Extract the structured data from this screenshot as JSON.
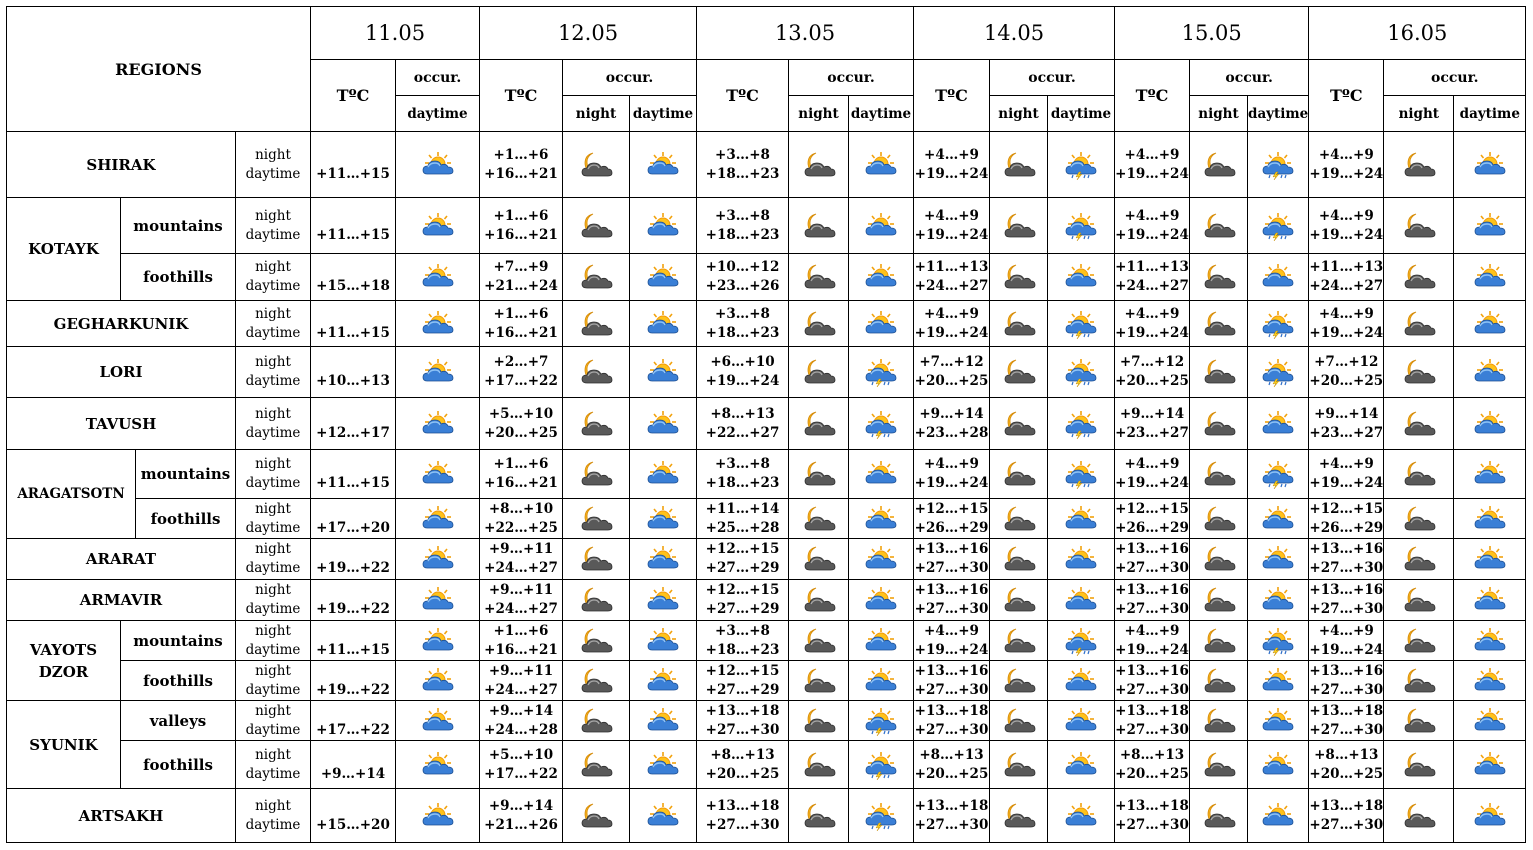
{
  "header": {
    "regions_label": "REGIONS",
    "temp_label": "TºC",
    "occur_label": "occur.",
    "night_label": "night",
    "daytime_label": "daytime",
    "dates": [
      "11.05",
      "12.05",
      "13.05",
      "14.05",
      "15.05",
      "16.05"
    ]
  },
  "row_labels": {
    "night": "night",
    "daytime": "daytime"
  },
  "rows": [
    {
      "region": "SHIRAK",
      "sub": "",
      "day1": {
        "day": "+11…+15",
        "icon": "sun-cloud-icon"
      },
      "days": [
        {
          "night": "+1…+6",
          "day": "+16…+21",
          "icons": [
            "moon-cloud-icon",
            "sun-cloud-icon"
          ]
        },
        {
          "night": "+3…+8",
          "day": "+18…+23",
          "icons": [
            "moon-cloud-icon",
            "sun-cloud-icon"
          ]
        },
        {
          "night": "+4…+9",
          "day": "+19…+24",
          "icons": [
            "moon-cloud-icon",
            "thunderstorm-icon"
          ]
        },
        {
          "night": "+4…+9",
          "day": "+19…+24",
          "icons": [
            "moon-cloud-icon",
            "thunderstorm-icon"
          ]
        },
        {
          "night": "+4…+9",
          "day": "+19…+24",
          "icons": [
            "moon-cloud-icon",
            "sun-cloud-icon"
          ]
        }
      ]
    },
    {
      "region": "KOTAYK",
      "sub": "mountains",
      "day1": {
        "day": "+11…+15",
        "icon": "sun-cloud-icon"
      },
      "days": [
        {
          "night": "+1…+6",
          "day": "+16…+21",
          "icons": [
            "moon-cloud-icon",
            "sun-cloud-icon"
          ]
        },
        {
          "night": "+3…+8",
          "day": "+18…+23",
          "icons": [
            "moon-cloud-icon",
            "sun-cloud-icon"
          ]
        },
        {
          "night": "+4…+9",
          "day": "+19…+24",
          "icons": [
            "moon-cloud-icon",
            "thunderstorm-icon"
          ]
        },
        {
          "night": "+4…+9",
          "day": "+19…+24",
          "icons": [
            "moon-cloud-icon",
            "thunderstorm-icon"
          ]
        },
        {
          "night": "+4…+9",
          "day": "+19…+24",
          "icons": [
            "moon-cloud-icon",
            "sun-cloud-icon"
          ]
        }
      ]
    },
    {
      "region": "KOTAYK",
      "sub": "foothills",
      "day1": {
        "day": "+15…+18",
        "icon": "sun-cloud-icon"
      },
      "days": [
        {
          "night": "+7…+9",
          "day": "+21…+24",
          "icons": [
            "moon-cloud-icon",
            "sun-cloud-icon"
          ]
        },
        {
          "night": "+10…+12",
          "day": "+23…+26",
          "icons": [
            "moon-cloud-icon",
            "sun-cloud-icon"
          ]
        },
        {
          "night": "+11…+13",
          "day": "+24…+27",
          "icons": [
            "moon-cloud-icon",
            "sun-cloud-icon"
          ]
        },
        {
          "night": "+11…+13",
          "day": "+24…+27",
          "icons": [
            "moon-cloud-icon",
            "sun-cloud-icon"
          ]
        },
        {
          "night": "+11…+13",
          "day": "+24…+27",
          "icons": [
            "moon-cloud-icon",
            "sun-cloud-icon"
          ]
        }
      ]
    },
    {
      "region": "GEGHARKUNIK",
      "sub": "",
      "day1": {
        "day": "+11…+15",
        "icon": "sun-cloud-icon"
      },
      "days": [
        {
          "night": "+1…+6",
          "day": "+16…+21",
          "icons": [
            "moon-cloud-icon",
            "sun-cloud-icon"
          ]
        },
        {
          "night": "+3…+8",
          "day": "+18…+23",
          "icons": [
            "moon-cloud-icon",
            "sun-cloud-icon"
          ]
        },
        {
          "night": "+4…+9",
          "day": "+19…+24",
          "icons": [
            "moon-cloud-icon",
            "thunderstorm-icon"
          ]
        },
        {
          "night": "+4…+9",
          "day": "+19…+24",
          "icons": [
            "moon-cloud-icon",
            "thunderstorm-icon"
          ]
        },
        {
          "night": "+4…+9",
          "day": "+19…+24",
          "icons": [
            "moon-cloud-icon",
            "sun-cloud-icon"
          ]
        }
      ]
    },
    {
      "region": "LORI",
      "sub": "",
      "day1": {
        "day": "+10…+13",
        "icon": "sun-cloud-icon"
      },
      "days": [
        {
          "night": "+2…+7",
          "day": "+17…+22",
          "icons": [
            "moon-cloud-icon",
            "sun-cloud-icon"
          ]
        },
        {
          "night": "+6…+10",
          "day": "+19…+24",
          "icons": [
            "moon-cloud-icon",
            "thunderstorm-icon"
          ]
        },
        {
          "night": "+7…+12",
          "day": "+20…+25",
          "icons": [
            "moon-cloud-icon",
            "thunderstorm-icon"
          ]
        },
        {
          "night": "+7…+12",
          "day": "+20…+25",
          "icons": [
            "moon-cloud-icon",
            "thunderstorm-icon"
          ]
        },
        {
          "night": "+7…+12",
          "day": "+20…+25",
          "icons": [
            "moon-cloud-icon",
            "sun-cloud-icon"
          ]
        }
      ]
    },
    {
      "region": "TAVUSH",
      "sub": "",
      "day1": {
        "day": "+12…+17",
        "icon": "sun-cloud-icon"
      },
      "days": [
        {
          "night": "+5…+10",
          "day": "+20…+25",
          "icons": [
            "moon-cloud-icon",
            "sun-cloud-icon"
          ]
        },
        {
          "night": "+8…+13",
          "day": "+22…+27",
          "icons": [
            "moon-cloud-icon",
            "thunderstorm-icon"
          ]
        },
        {
          "night": "+9…+14",
          "day": "+23…+28",
          "icons": [
            "moon-cloud-icon",
            "thunderstorm-icon"
          ]
        },
        {
          "night": "+9…+14",
          "day": "+23…+27",
          "icons": [
            "moon-cloud-icon",
            "sun-cloud-icon"
          ]
        },
        {
          "night": "+9…+14",
          "day": "+23…+27",
          "icons": [
            "moon-cloud-icon",
            "sun-cloud-icon"
          ]
        }
      ]
    },
    {
      "region": "ARAGATSOTN",
      "sub": "mountains",
      "day1": {
        "day": "+11…+15",
        "icon": "sun-cloud-icon"
      },
      "days": [
        {
          "night": "+1…+6",
          "day": "+16…+21",
          "icons": [
            "moon-cloud-icon",
            "sun-cloud-icon"
          ]
        },
        {
          "night": "+3…+8",
          "day": "+18…+23",
          "icons": [
            "moon-cloud-icon",
            "sun-cloud-icon"
          ]
        },
        {
          "night": "+4…+9",
          "day": "+19…+24",
          "icons": [
            "moon-cloud-icon",
            "thunderstorm-icon"
          ]
        },
        {
          "night": "+4…+9",
          "day": "+19…+24",
          "icons": [
            "moon-cloud-icon",
            "thunderstorm-icon"
          ]
        },
        {
          "night": "+4…+9",
          "day": "+19…+24",
          "icons": [
            "moon-cloud-icon",
            "sun-cloud-icon"
          ]
        }
      ]
    },
    {
      "region": "ARAGATSOTN",
      "sub": "foothills",
      "day1": {
        "day": "+17…+20",
        "icon": "sun-cloud-icon"
      },
      "days": [
        {
          "night": "+8…+10",
          "day": "+22…+25",
          "icons": [
            "moon-cloud-icon",
            "sun-cloud-icon"
          ]
        },
        {
          "night": "+11…+14",
          "day": "+25…+28",
          "icons": [
            "moon-cloud-icon",
            "sun-cloud-icon"
          ]
        },
        {
          "night": "+12…+15",
          "day": "+26…+29",
          "icons": [
            "moon-cloud-icon",
            "sun-cloud-icon"
          ]
        },
        {
          "night": "+12…+15",
          "day": "+26…+29",
          "icons": [
            "moon-cloud-icon",
            "sun-cloud-icon"
          ]
        },
        {
          "night": "+12…+15",
          "day": "+26…+29",
          "icons": [
            "moon-cloud-icon",
            "sun-cloud-icon"
          ]
        }
      ]
    },
    {
      "region": "ARARAT",
      "sub": "",
      "day1": {
        "day": "+19…+22",
        "icon": "sun-cloud-icon"
      },
      "days": [
        {
          "night": "+9…+11",
          "day": "+24…+27",
          "icons": [
            "moon-cloud-icon",
            "sun-cloud-icon"
          ]
        },
        {
          "night": "+12…+15",
          "day": "+27…+29",
          "icons": [
            "moon-cloud-icon",
            "sun-cloud-icon"
          ]
        },
        {
          "night": "+13…+16",
          "day": "+27…+30",
          "icons": [
            "moon-cloud-icon",
            "sun-cloud-icon"
          ]
        },
        {
          "night": "+13…+16",
          "day": "+27…+30",
          "icons": [
            "moon-cloud-icon",
            "sun-cloud-icon"
          ]
        },
        {
          "night": "+13…+16",
          "day": "+27…+30",
          "icons": [
            "moon-cloud-icon",
            "sun-cloud-icon"
          ]
        }
      ]
    },
    {
      "region": "ARMAVIR",
      "sub": "",
      "day1": {
        "day": "+19…+22",
        "icon": "sun-cloud-icon"
      },
      "days": [
        {
          "night": "+9…+11",
          "day": "+24…+27",
          "icons": [
            "moon-cloud-icon",
            "sun-cloud-icon"
          ]
        },
        {
          "night": "+12…+15",
          "day": "+27…+29",
          "icons": [
            "moon-cloud-icon",
            "sun-cloud-icon"
          ]
        },
        {
          "night": "+13…+16",
          "day": "+27…+30",
          "icons": [
            "moon-cloud-icon",
            "sun-cloud-icon"
          ]
        },
        {
          "night": "+13…+16",
          "day": "+27…+30",
          "icons": [
            "moon-cloud-icon",
            "sun-cloud-icon"
          ]
        },
        {
          "night": "+13…+16",
          "day": "+27…+30",
          "icons": [
            "moon-cloud-icon",
            "sun-cloud-icon"
          ]
        }
      ]
    },
    {
      "region": "VAYOTS DZOR",
      "sub": "mountains",
      "day1": {
        "day": "+11…+15",
        "icon": "sun-cloud-icon"
      },
      "days": [
        {
          "night": "+1…+6",
          "day": "+16…+21",
          "icons": [
            "moon-cloud-icon",
            "sun-cloud-icon"
          ]
        },
        {
          "night": "+3…+8",
          "day": "+18…+23",
          "icons": [
            "moon-cloud-icon",
            "sun-cloud-icon"
          ]
        },
        {
          "night": "+4…+9",
          "day": "+19…+24",
          "icons": [
            "moon-cloud-icon",
            "thunderstorm-icon"
          ]
        },
        {
          "night": "+4…+9",
          "day": "+19…+24",
          "icons": [
            "moon-cloud-icon",
            "thunderstorm-icon"
          ]
        },
        {
          "night": "+4…+9",
          "day": "+19…+24",
          "icons": [
            "moon-cloud-icon",
            "sun-cloud-icon"
          ]
        }
      ]
    },
    {
      "region": "VAYOTS DZOR",
      "sub": "foothills",
      "day1": {
        "day": "+19…+22",
        "icon": "sun-cloud-icon"
      },
      "days": [
        {
          "night": "+9…+11",
          "day": "+24…+27",
          "icons": [
            "moon-cloud-icon",
            "sun-cloud-icon"
          ]
        },
        {
          "night": "+12…+15",
          "day": "+27…+29",
          "icons": [
            "moon-cloud-icon",
            "sun-cloud-icon"
          ]
        },
        {
          "night": "+13…+16",
          "day": "+27…+30",
          "icons": [
            "moon-cloud-icon",
            "sun-cloud-icon"
          ]
        },
        {
          "night": "+13…+16",
          "day": "+27…+30",
          "icons": [
            "moon-cloud-icon",
            "sun-cloud-icon"
          ]
        },
        {
          "night": "+13…+16",
          "day": "+27…+30",
          "icons": [
            "moon-cloud-icon",
            "sun-cloud-icon"
          ]
        }
      ]
    },
    {
      "region": "SYUNIK",
      "sub": "valleys",
      "day1": {
        "day": "+17…+22",
        "icon": "sun-cloud-icon"
      },
      "days": [
        {
          "night": "+9…+14",
          "day": "+24…+28",
          "icons": [
            "moon-cloud-icon",
            "sun-cloud-icon"
          ]
        },
        {
          "night": "+13…+18",
          "day": "+27…+30",
          "icons": [
            "moon-cloud-icon",
            "thunderstorm-icon"
          ]
        },
        {
          "night": "+13…+18",
          "day": "+27…+30",
          "icons": [
            "moon-cloud-icon",
            "sun-cloud-icon"
          ]
        },
        {
          "night": "+13…+18",
          "day": "+27…+30",
          "icons": [
            "moon-cloud-icon",
            "sun-cloud-icon"
          ]
        },
        {
          "night": "+13…+18",
          "day": "+27…+30",
          "icons": [
            "moon-cloud-icon",
            "sun-cloud-icon"
          ]
        }
      ]
    },
    {
      "region": "SYUNIK",
      "sub": "foothills",
      "day1": {
        "day": "+9…+14",
        "icon": "sun-cloud-icon"
      },
      "days": [
        {
          "night": "+5…+10",
          "day": "+17…+22",
          "icons": [
            "moon-cloud-icon",
            "sun-cloud-icon"
          ]
        },
        {
          "night": "+8…+13",
          "day": "+20…+25",
          "icons": [
            "moon-cloud-icon",
            "thunderstorm-icon"
          ]
        },
        {
          "night": "+8…+13",
          "day": "+20…+25",
          "icons": [
            "moon-cloud-icon",
            "sun-cloud-icon"
          ]
        },
        {
          "night": "+8…+13",
          "day": "+20…+25",
          "icons": [
            "moon-cloud-icon",
            "sun-cloud-icon"
          ]
        },
        {
          "night": "+8…+13",
          "day": "+20…+25",
          "icons": [
            "moon-cloud-icon",
            "sun-cloud-icon"
          ]
        }
      ]
    },
    {
      "region": "ARTSAKH",
      "sub": "",
      "day1": {
        "day": "+15…+20",
        "icon": "sun-cloud-icon"
      },
      "days": [
        {
          "night": "+9…+14",
          "day": "+21…+26",
          "icons": [
            "moon-cloud-icon",
            "sun-cloud-icon"
          ]
        },
        {
          "night": "+13…+18",
          "day": "+27…+30",
          "icons": [
            "moon-cloud-icon",
            "thunderstorm-icon"
          ]
        },
        {
          "night": "+13…+18",
          "day": "+27…+30",
          "icons": [
            "moon-cloud-icon",
            "sun-cloud-icon"
          ]
        },
        {
          "night": "+13…+18",
          "day": "+27…+30",
          "icons": [
            "moon-cloud-icon",
            "sun-cloud-icon"
          ]
        },
        {
          "night": "+13…+18",
          "day": "+27…+30",
          "icons": [
            "moon-cloud-icon",
            "sun-cloud-icon"
          ]
        }
      ]
    }
  ]
}
